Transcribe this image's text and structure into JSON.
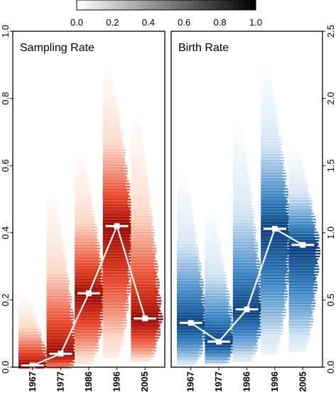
{
  "colorbar": {
    "ticks": [
      "0.0",
      "0.2",
      "0.4",
      "0.6",
      "0.8",
      "1.0"
    ],
    "range": [
      0,
      1
    ]
  },
  "colors": {
    "sampling_dark": "#800000",
    "sampling_mid": "#e8452a",
    "sampling_light": "#fcd9c8",
    "birth_dark": "#06306a",
    "birth_mid": "#3a84c4",
    "birth_light": "#d5e6f5",
    "median_marker": "#ffffff"
  },
  "chart_data": [
    {
      "type": "violin",
      "title": "Sampling Rate",
      "categories": [
        "1967",
        "1977",
        "1986",
        "1996",
        "2005"
      ],
      "ylim": [
        0,
        1
      ],
      "yticks": [
        "0.0",
        "0.2",
        "0.4",
        "0.6",
        "0.8",
        "1.0"
      ],
      "axis_side": "left",
      "medians": [
        0.005,
        0.04,
        0.22,
        0.42,
        0.145
      ],
      "distribution_top": [
        0.25,
        0.58,
        0.69,
        0.95,
        0.83
      ],
      "distribution_bottom": [
        0.0,
        0.0,
        0.01,
        0.03,
        0.02
      ],
      "grid": false
    },
    {
      "type": "violin",
      "title": "Birth Rate",
      "categories": [
        "1967",
        "1977",
        "1986",
        "1996",
        "2005"
      ],
      "ylim": [
        0,
        2.5
      ],
      "yticks": [
        "0.0",
        "0.5",
        "1.0",
        "1.5",
        "2.0",
        "2.5"
      ],
      "axis_side": "right",
      "medians": [
        0.33,
        0.19,
        0.43,
        1.03,
        0.91
      ],
      "distribution_top": [
        1.6,
        1.3,
        2.0,
        2.4,
        1.75
      ],
      "distribution_bottom": [
        0.02,
        0.03,
        0.05,
        0.1,
        0.12
      ],
      "grid": false
    }
  ]
}
